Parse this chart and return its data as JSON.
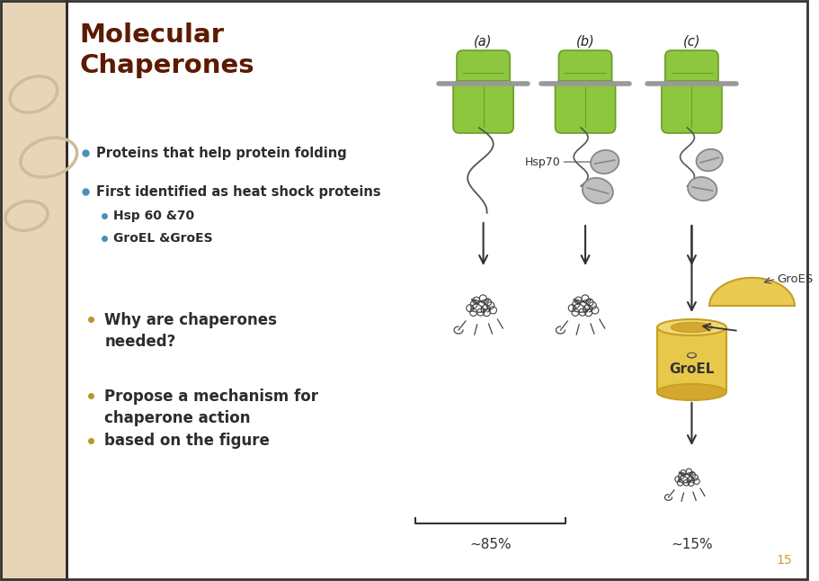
{
  "bg_color": "#ffffff",
  "sidebar_color": "#e8d5b7",
  "title": "Molecular\nChaperones",
  "title_color": "#5c1a00",
  "title_fontsize": 21,
  "bullet_color": "#4a90b8",
  "bullet_color2": "#b8962e",
  "text_color": "#2c2c2c",
  "bullet1": "Proteins that help protein folding",
  "bullet2": "First identified as heat shock proteins",
  "sub1": "Hsp 60 &70",
  "sub2": "GroEL &GroES",
  "q1": "Why are chaperones\nneeded?",
  "q2": "Propose a mechanism for\nchaperone action",
  "q3": "based on the figure",
  "label_a": "(a)",
  "label_b": "(b)",
  "label_c": "(c)",
  "hsp70_label": "Hsp70",
  "groel_label": "GroEL",
  "groes_label": "GroES",
  "pct_85": "~85%",
  "pct_15": "~15%",
  "page_num": "15",
  "green_color": "#8dc63f",
  "green_edge": "#6a9e28",
  "gray_color": "#c0c0c0",
  "gray_edge": "#888888",
  "gold_color": "#e8c84a",
  "gold_edge": "#c8a020",
  "gold_dark": "#d4a830",
  "gold_light": "#f0d878",
  "arrow_color": "#333333",
  "line_color": "#888888"
}
